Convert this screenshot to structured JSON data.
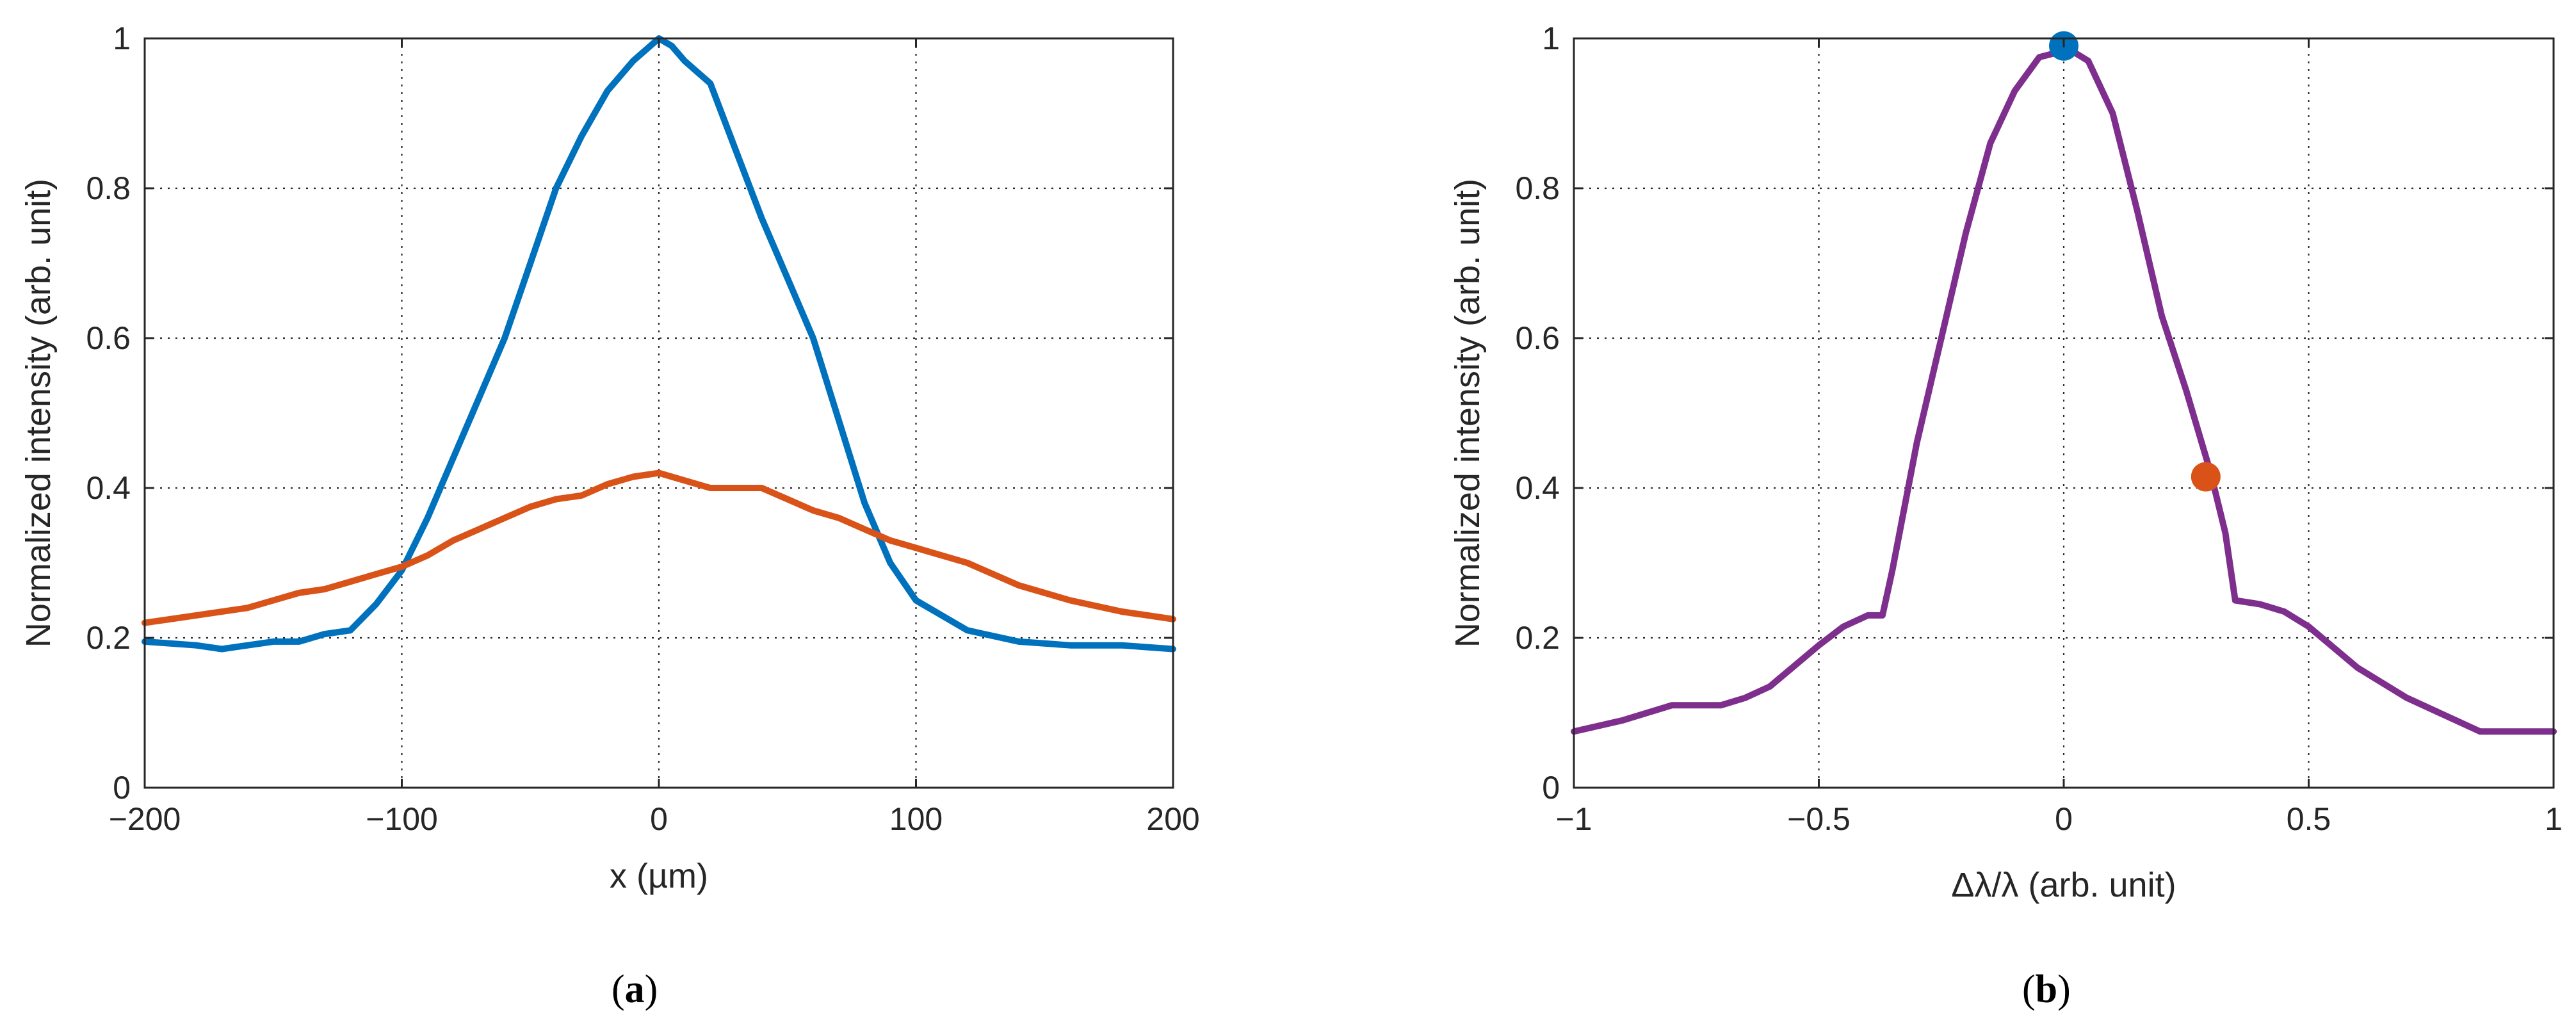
{
  "chart_data": [
    {
      "type": "line",
      "panel_label": "a",
      "xlabel": "x (µm)",
      "ylabel": "Normalized intensity (arb. unit)",
      "xlim": [
        -200,
        200
      ],
      "ylim": [
        0,
        1
      ],
      "xticks": [
        -200,
        -100,
        0,
        100,
        200
      ],
      "xtick_labels": [
        "−200",
        "−100",
        "0",
        "100",
        "200"
      ],
      "yticks": [
        0,
        0.2,
        0.4,
        0.6,
        0.8,
        1
      ],
      "ytick_labels": [
        "0",
        "0.2",
        "0.4",
        "0.6",
        "0.8",
        "1"
      ],
      "grid": true,
      "series": [
        {
          "name": "blue",
          "color": "#0072BD",
          "x": [
            -200,
            -180,
            -170,
            -160,
            -150,
            -140,
            -130,
            -120,
            -110,
            -100,
            -90,
            -80,
            -70,
            -60,
            -50,
            -40,
            -30,
            -20,
            -10,
            0,
            5,
            10,
            20,
            30,
            40,
            50,
            60,
            70,
            80,
            90,
            100,
            110,
            120,
            140,
            160,
            180,
            200
          ],
          "y": [
            0.195,
            0.19,
            0.185,
            0.19,
            0.195,
            0.195,
            0.205,
            0.21,
            0.245,
            0.29,
            0.36,
            0.44,
            0.52,
            0.6,
            0.7,
            0.8,
            0.87,
            0.93,
            0.97,
            1.0,
            0.99,
            0.97,
            0.94,
            0.85,
            0.76,
            0.68,
            0.6,
            0.49,
            0.38,
            0.3,
            0.25,
            0.23,
            0.21,
            0.195,
            0.19,
            0.19,
            0.185
          ]
        },
        {
          "name": "orange",
          "color": "#D95319",
          "x": [
            -200,
            -180,
            -160,
            -150,
            -140,
            -130,
            -120,
            -110,
            -100,
            -90,
            -80,
            -70,
            -60,
            -50,
            -40,
            -30,
            -20,
            -10,
            0,
            10,
            20,
            30,
            40,
            50,
            60,
            70,
            80,
            90,
            100,
            120,
            140,
            160,
            180,
            200
          ],
          "y": [
            0.22,
            0.23,
            0.24,
            0.25,
            0.26,
            0.265,
            0.275,
            0.285,
            0.295,
            0.31,
            0.33,
            0.345,
            0.36,
            0.375,
            0.385,
            0.39,
            0.405,
            0.415,
            0.42,
            0.41,
            0.4,
            0.4,
            0.4,
            0.385,
            0.37,
            0.36,
            0.345,
            0.33,
            0.32,
            0.3,
            0.27,
            0.25,
            0.235,
            0.225
          ]
        }
      ]
    },
    {
      "type": "line",
      "panel_label": "b",
      "xlabel": "Δλ/λ (arb. unit)",
      "ylabel": "Normalized intensity (arb. unit)",
      "xlim": [
        -1,
        1
      ],
      "ylim": [
        0,
        1
      ],
      "xticks": [
        -1,
        -0.5,
        0,
        0.5,
        1
      ],
      "xtick_labels": [
        "−1",
        "−0.5",
        "0",
        "0.5",
        "1"
      ],
      "yticks": [
        0,
        0.2,
        0.4,
        0.6,
        0.8,
        1
      ],
      "ytick_labels": [
        "0",
        "0.2",
        "0.4",
        "0.6",
        "0.8",
        "1"
      ],
      "grid": true,
      "series": [
        {
          "name": "purple",
          "color": "#7E2F8E",
          "x": [
            -1.0,
            -0.9,
            -0.8,
            -0.7,
            -0.65,
            -0.6,
            -0.5,
            -0.45,
            -0.4,
            -0.37,
            -0.35,
            -0.3,
            -0.25,
            -0.2,
            -0.15,
            -0.1,
            -0.05,
            -0.02,
            0.0,
            0.05,
            0.1,
            0.15,
            0.2,
            0.25,
            0.3,
            0.33,
            0.35,
            0.4,
            0.45,
            0.5,
            0.6,
            0.7,
            0.8,
            0.85,
            0.9,
            1.0
          ],
          "y": [
            0.075,
            0.09,
            0.11,
            0.11,
            0.12,
            0.135,
            0.19,
            0.215,
            0.23,
            0.23,
            0.29,
            0.46,
            0.6,
            0.74,
            0.86,
            0.93,
            0.975,
            0.98,
            0.99,
            0.97,
            0.9,
            0.77,
            0.63,
            0.53,
            0.42,
            0.34,
            0.25,
            0.245,
            0.235,
            0.215,
            0.16,
            0.12,
            0.09,
            0.075,
            0.075,
            0.075
          ]
        }
      ],
      "markers": [
        {
          "name": "peak-point",
          "x": 0.0,
          "y": 0.99,
          "color": "#0072BD"
        },
        {
          "name": "half-point",
          "x": 0.29,
          "y": 0.415,
          "color": "#D95319"
        }
      ]
    }
  ]
}
